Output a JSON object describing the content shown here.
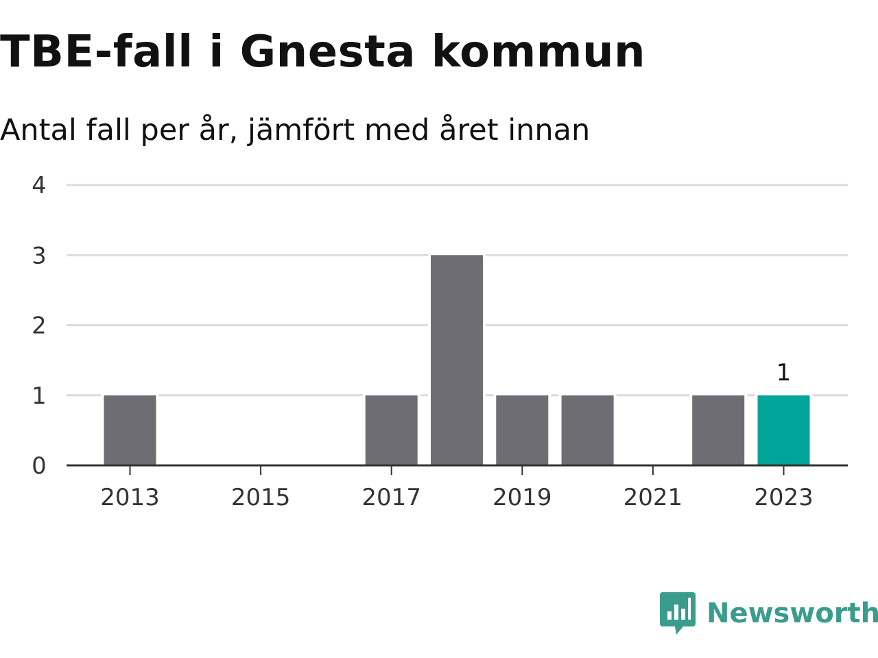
{
  "header": {
    "title": "TBE-fall i Gnesta kommun",
    "subtitle": "Antal fall per år, jämfört med året innan"
  },
  "colors": {
    "bar": "#6e6d73",
    "highlight": "#00a59a",
    "grid": "#dcdcdc",
    "axis": "#333333",
    "brand": "#3a9c8d"
  },
  "chart_data": {
    "type": "bar",
    "title": "TBE-fall i Gnesta kommun",
    "subtitle": "Antal fall per år, jämfört med året innan",
    "xlabel": "",
    "ylabel": "",
    "categories": [
      "2013",
      "2014",
      "2015",
      "2016",
      "2017",
      "2018",
      "2019",
      "2020",
      "2021",
      "2022",
      "2023"
    ],
    "values": [
      1,
      0,
      0,
      0,
      1,
      3,
      1,
      1,
      0,
      1,
      1
    ],
    "x_tick_labels": [
      "2013",
      "2015",
      "2017",
      "2019",
      "2021",
      "2023"
    ],
    "y_ticks": [
      0,
      1,
      2,
      3,
      4
    ],
    "ylim": [
      0,
      4
    ],
    "grid": true,
    "highlight_category": "2023",
    "highlight_label": "1"
  },
  "logo": {
    "icon": "newsworthy-logo-icon",
    "text": "Newsworthy"
  }
}
